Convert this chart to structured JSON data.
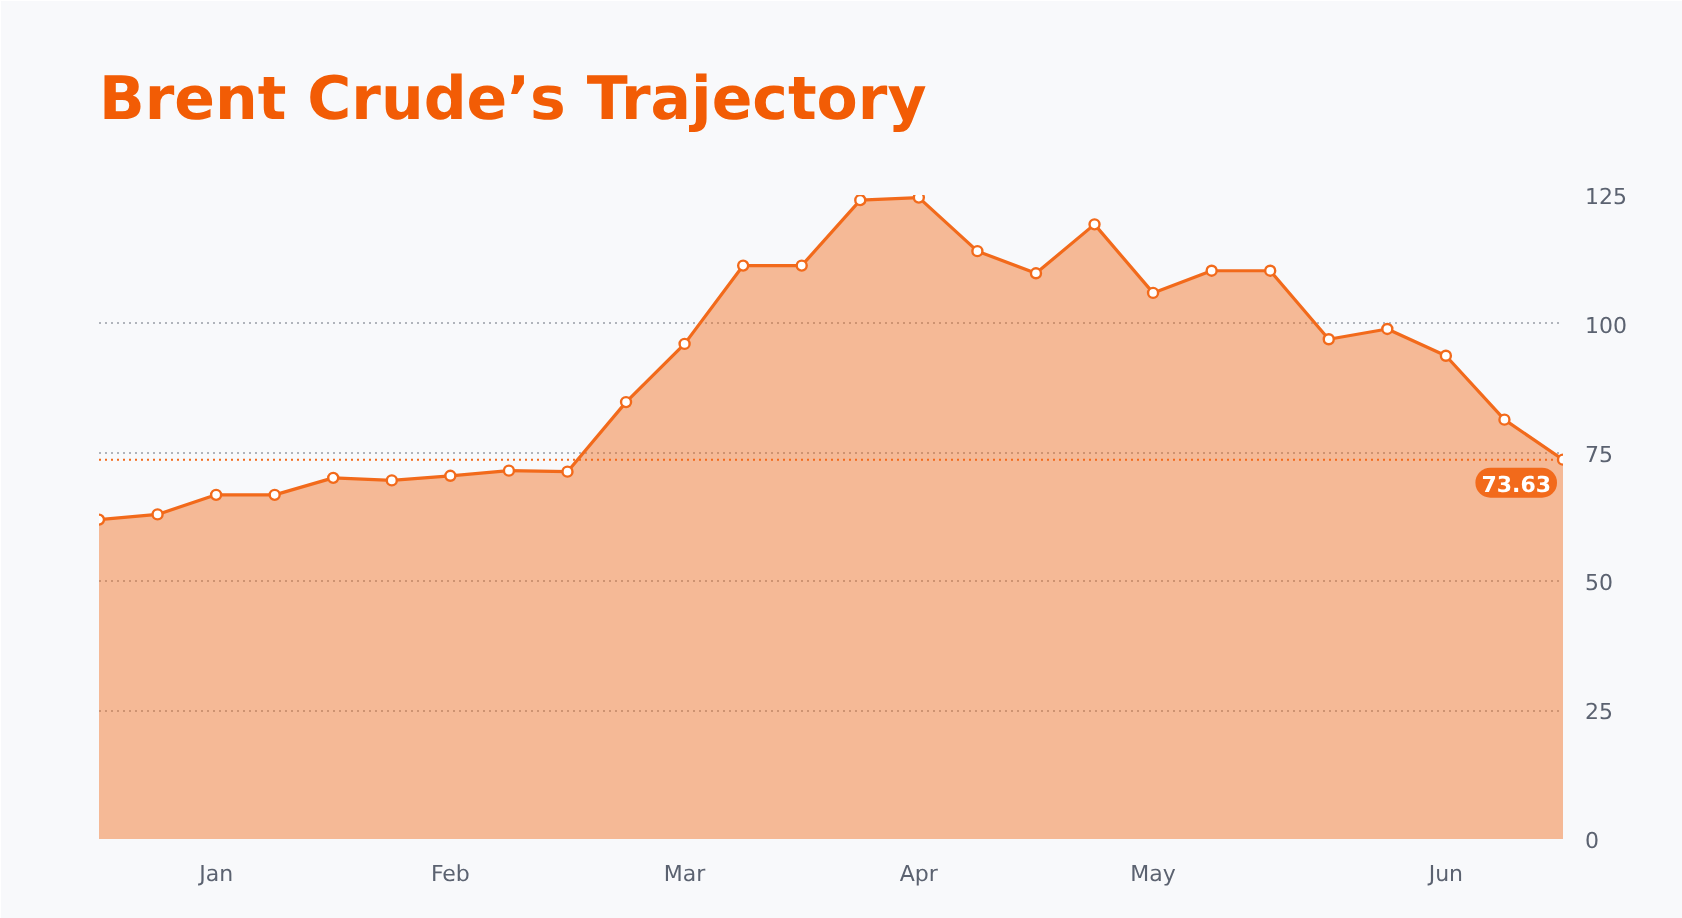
{
  "chart_data": {
    "type": "area",
    "title": "Brent Crude’s Trajectory",
    "categories": [
      null,
      null,
      "Jan",
      null,
      null,
      null,
      "Feb",
      null,
      null,
      null,
      "Mar",
      null,
      null,
      null,
      "Apr",
      null,
      null,
      null,
      "May",
      null,
      null,
      null,
      null,
      "Jun",
      null,
      null
    ],
    "series": [
      {
        "color": "#f26a1b",
        "values": [
          62,
          63,
          66.8,
          66.8,
          70.1,
          69.6,
          70.5,
          71.5,
          71.3,
          84.8,
          96.1,
          111.3,
          111.3,
          124,
          124.5,
          114.1,
          109.8,
          119.3,
          106,
          110.3,
          110.3,
          97,
          99,
          93.8,
          81.4,
          73.63
        ]
      }
    ],
    "ylim": [
      0,
      125
    ],
    "yticks": [
      0,
      25,
      50,
      75,
      100,
      125
    ],
    "grid": "y",
    "marker": "circle",
    "line_style": "solid",
    "ref_lines": [
      {
        "axis": "y",
        "value": 73.63,
        "label": "73.63",
        "color": "#f26a1b",
        "line_style": "dotted"
      }
    ]
  }
}
